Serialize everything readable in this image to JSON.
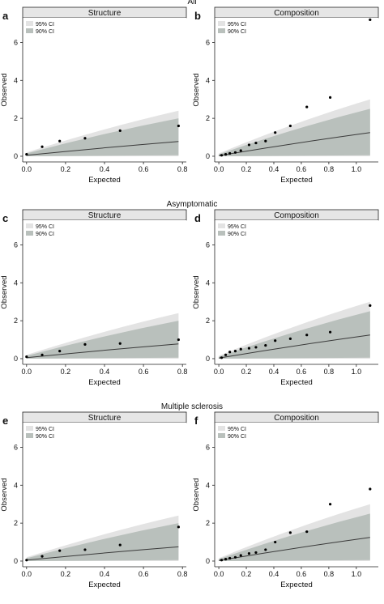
{
  "row_titles": [
    "All",
    "Asymptomatic",
    "Multiple sclerosis"
  ],
  "legend_labels": [
    "95% CI",
    "90% CI"
  ],
  "colors": {
    "ci95": "#e3e3e3",
    "ci90": "#b9c0bc",
    "median": "#3a3a3a",
    "points": "#000000",
    "axis": "#222222",
    "title_strip": "#e6e6e6"
  },
  "chart_data": [
    {
      "type": "scatter",
      "row": "All",
      "panel_label": "a",
      "title": "Structure",
      "xlabel": "Expected",
      "ylabel": "Observed",
      "xlim": [
        -0.02,
        0.82
      ],
      "ylim": [
        -0.3,
        7.3
      ],
      "xticks": [
        0,
        0.2,
        0.4,
        0.6,
        0.8
      ],
      "xtick_labels": [
        "0.0",
        "0.2",
        "0.4",
        "0.6",
        "0.8"
      ],
      "yticks": [
        0,
        2,
        4,
        6
      ],
      "ytick_labels": [
        "0",
        "2",
        "4",
        "6"
      ],
      "band_x": [
        0,
        0.78
      ],
      "ci95": {
        "lower": [
          0,
          0
        ],
        "upper": [
          0.2,
          2.4
        ]
      },
      "ci90": {
        "lower": [
          0,
          0.05
        ],
        "upper": [
          0.15,
          2.0
        ]
      },
      "median": [
        0.05,
        0.78
      ],
      "points": {
        "x": [
          0.0,
          0.08,
          0.17,
          0.3,
          0.48,
          0.78
        ],
        "y": [
          0.1,
          0.5,
          0.8,
          0.95,
          1.35,
          1.6
        ]
      }
    },
    {
      "type": "scatter",
      "row": "All",
      "panel_label": "b",
      "title": "Composition",
      "xlabel": "Expected",
      "ylabel": "Observed",
      "xlim": [
        -0.03,
        1.16
      ],
      "ylim": [
        -0.3,
        7.3
      ],
      "xticks": [
        0,
        0.2,
        0.4,
        0.6,
        0.8,
        1.0
      ],
      "xtick_labels": [
        "0.0",
        "0.2",
        "0.4",
        "0.6",
        "0.8",
        "1.0"
      ],
      "yticks": [
        0,
        2,
        4,
        6
      ],
      "ytick_labels": [
        "0",
        "2",
        "4",
        "6"
      ],
      "band_x": [
        0,
        1.1
      ],
      "ci95": {
        "lower": [
          0,
          0
        ],
        "upper": [
          0.15,
          3.0
        ]
      },
      "ci90": {
        "lower": [
          0,
          0.05
        ],
        "upper": [
          0.1,
          2.5
        ]
      },
      "median": [
        0.03,
        1.25
      ],
      "points": {
        "x": [
          0.02,
          0.05,
          0.08,
          0.12,
          0.16,
          0.22,
          0.27,
          0.34,
          0.41,
          0.52,
          0.64,
          0.81,
          1.1
        ],
        "y": [
          0.05,
          0.1,
          0.15,
          0.2,
          0.3,
          0.6,
          0.7,
          0.8,
          1.25,
          1.6,
          2.6,
          3.1,
          7.2
        ]
      }
    },
    {
      "type": "scatter",
      "row": "Asymptomatic",
      "panel_label": "c",
      "title": "Structure",
      "xlabel": "Expected",
      "ylabel": "Observed",
      "xlim": [
        -0.02,
        0.82
      ],
      "ylim": [
        -0.3,
        7.3
      ],
      "xticks": [
        0,
        0.2,
        0.4,
        0.6,
        0.8
      ],
      "xtick_labels": [
        "0.0",
        "0.2",
        "0.4",
        "0.6",
        "0.8"
      ],
      "yticks": [
        0,
        2,
        4,
        6
      ],
      "ytick_labels": [
        "0",
        "2",
        "4",
        "6"
      ],
      "band_x": [
        0,
        0.78
      ],
      "ci95": {
        "lower": [
          0,
          0
        ],
        "upper": [
          0.2,
          2.4
        ]
      },
      "ci90": {
        "lower": [
          0,
          0.05
        ],
        "upper": [
          0.15,
          2.0
        ]
      },
      "median": [
        0.05,
        0.78
      ],
      "points": {
        "x": [
          0.0,
          0.08,
          0.17,
          0.3,
          0.48,
          0.78
        ],
        "y": [
          0.1,
          0.2,
          0.4,
          0.75,
          0.8,
          1.0
        ]
      }
    },
    {
      "type": "scatter",
      "row": "Asymptomatic",
      "panel_label": "d",
      "title": "Composition",
      "xlabel": "Expected",
      "ylabel": "Observed",
      "xlim": [
        -0.03,
        1.16
      ],
      "ylim": [
        -0.3,
        7.3
      ],
      "xticks": [
        0,
        0.2,
        0.4,
        0.6,
        0.8,
        1.0
      ],
      "xtick_labels": [
        "0.0",
        "0.2",
        "0.4",
        "0.6",
        "0.8",
        "1.0"
      ],
      "yticks": [
        0,
        2,
        4,
        6
      ],
      "ytick_labels": [
        "0",
        "2",
        "4",
        "6"
      ],
      "band_x": [
        0,
        1.1
      ],
      "ci95": {
        "lower": [
          0,
          0
        ],
        "upper": [
          0.15,
          3.0
        ]
      },
      "ci90": {
        "lower": [
          0,
          0.05
        ],
        "upper": [
          0.1,
          2.5
        ]
      },
      "median": [
        0.03,
        1.25
      ],
      "points": {
        "x": [
          0.02,
          0.05,
          0.08,
          0.12,
          0.16,
          0.22,
          0.27,
          0.34,
          0.41,
          0.52,
          0.64,
          0.81,
          1.1
        ],
        "y": [
          0.05,
          0.2,
          0.35,
          0.4,
          0.5,
          0.55,
          0.6,
          0.7,
          0.95,
          1.05,
          1.25,
          1.4,
          2.8
        ]
      }
    },
    {
      "type": "scatter",
      "row": "Multiple sclerosis",
      "panel_label": "e",
      "title": "Structure",
      "xlabel": "Expected",
      "ylabel": "Observed",
      "xlim": [
        -0.02,
        0.82
      ],
      "ylim": [
        -0.3,
        7.3
      ],
      "xticks": [
        0,
        0.2,
        0.4,
        0.6,
        0.8
      ],
      "xtick_labels": [
        "0.0",
        "0.2",
        "0.4",
        "0.6",
        "0.8"
      ],
      "yticks": [
        0,
        2,
        4,
        6
      ],
      "ytick_labels": [
        "0",
        "2",
        "4",
        "6"
      ],
      "band_x": [
        0,
        0.78
      ],
      "ci95": {
        "lower": [
          0,
          0
        ],
        "upper": [
          0.2,
          2.4
        ]
      },
      "ci90": {
        "lower": [
          0,
          0.05
        ],
        "upper": [
          0.15,
          2.0
        ]
      },
      "median": [
        0.05,
        0.75
      ],
      "points": {
        "x": [
          0.0,
          0.08,
          0.17,
          0.3,
          0.48,
          0.78
        ],
        "y": [
          0.05,
          0.25,
          0.55,
          0.6,
          0.85,
          1.8
        ]
      }
    },
    {
      "type": "scatter",
      "row": "Multiple sclerosis",
      "panel_label": "f",
      "title": "Composition",
      "xlabel": "Expected",
      "ylabel": "Observed",
      "xlim": [
        -0.03,
        1.16
      ],
      "ylim": [
        -0.3,
        7.3
      ],
      "xticks": [
        0,
        0.2,
        0.4,
        0.6,
        0.8,
        1.0
      ],
      "xtick_labels": [
        "0.0",
        "0.2",
        "0.4",
        "0.6",
        "0.8",
        "1.0"
      ],
      "yticks": [
        0,
        2,
        4,
        6
      ],
      "ytick_labels": [
        "0",
        "2",
        "4",
        "6"
      ],
      "band_x": [
        0,
        1.1
      ],
      "ci95": {
        "lower": [
          0,
          0
        ],
        "upper": [
          0.15,
          3.0
        ]
      },
      "ci90": {
        "lower": [
          0,
          0.05
        ],
        "upper": [
          0.1,
          2.5
        ]
      },
      "median": [
        0.03,
        1.25
      ],
      "points": {
        "x": [
          0.02,
          0.05,
          0.08,
          0.12,
          0.16,
          0.22,
          0.27,
          0.34,
          0.41,
          0.52,
          0.64,
          0.81,
          1.1
        ],
        "y": [
          0.05,
          0.1,
          0.15,
          0.2,
          0.3,
          0.4,
          0.45,
          0.6,
          1.0,
          1.5,
          1.55,
          3.0,
          3.8
        ]
      }
    }
  ]
}
